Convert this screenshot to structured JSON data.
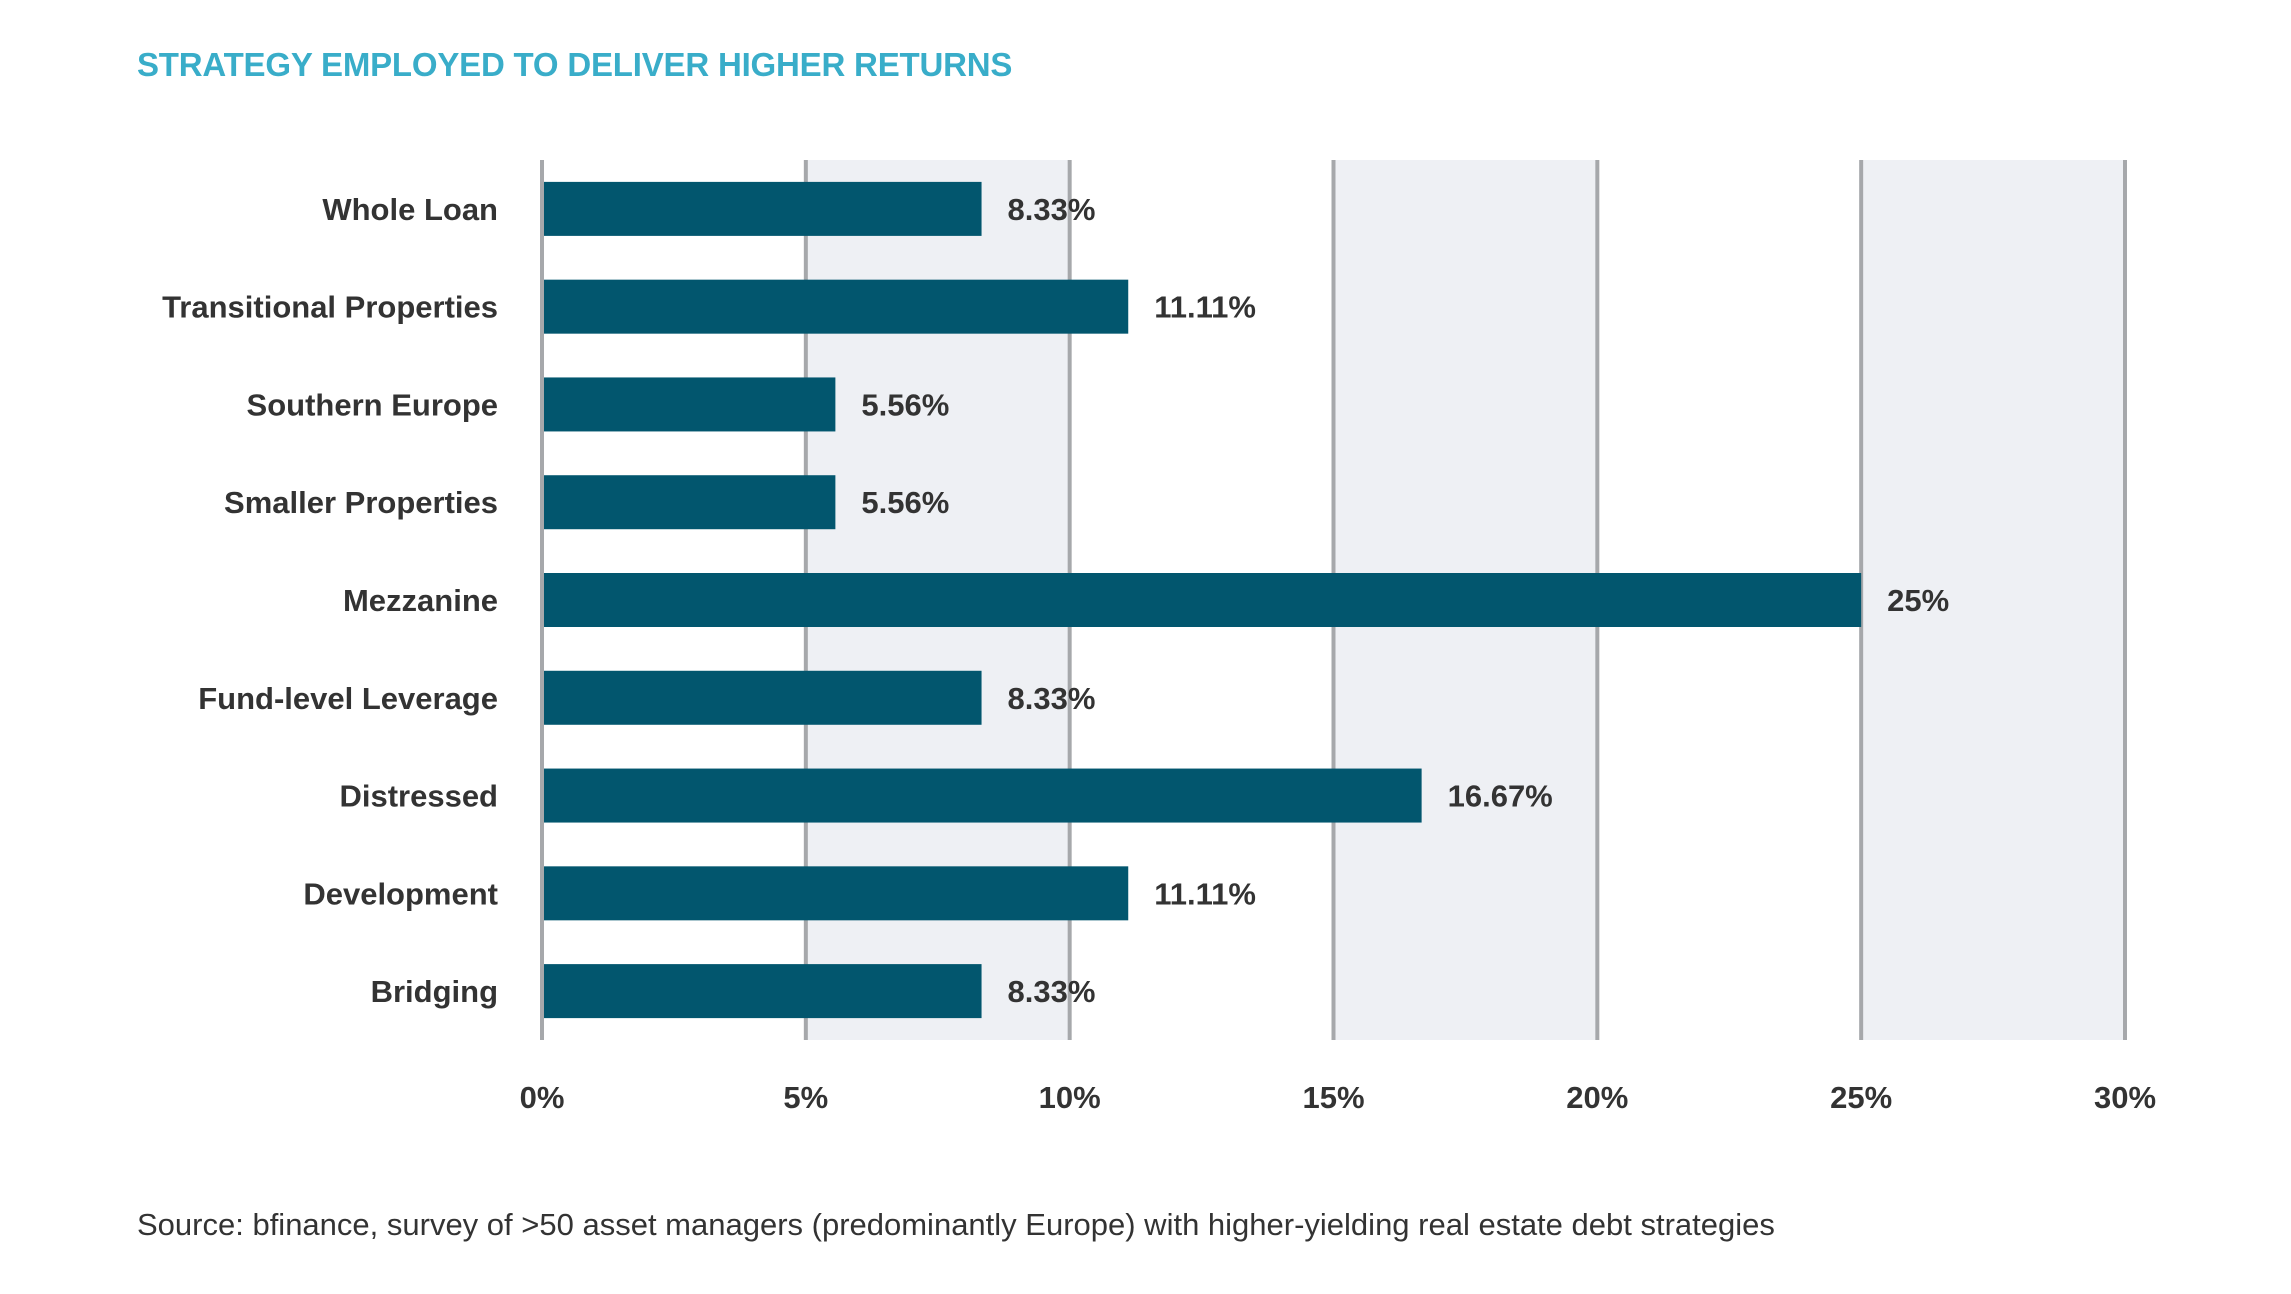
{
  "title": "STRATEGY EMPLOYED TO DELIVER HIGHER RETURNS",
  "source": "Source: bfinance, survey of >50 asset managers (predominantly Europe) with higher-yielding real estate debt strategies",
  "colors": {
    "title": "#39adc9",
    "bar": "#02566e",
    "band": "#eef0f4",
    "grid": "#a6a8ab",
    "text": "#333333"
  },
  "chart_data": {
    "type": "bar",
    "orientation": "horizontal",
    "title": "STRATEGY EMPLOYED TO DELIVER HIGHER RETURNS",
    "categories": [
      "Whole Loan",
      "Transitional Properties",
      "Southern Europe",
      "Smaller Properties",
      "Mezzanine",
      "Fund-level Leverage",
      "Distressed",
      "Development",
      "Bridging"
    ],
    "values": [
      8.33,
      11.11,
      5.56,
      5.56,
      25,
      8.33,
      16.67,
      11.11,
      8.33
    ],
    "value_labels": [
      "8.33%",
      "11.11%",
      "5.56%",
      "5.56%",
      "25%",
      "8.33%",
      "16.67%",
      "11.11%",
      "8.33%"
    ],
    "xlim": [
      0,
      30
    ],
    "xticks": [
      0,
      5,
      10,
      15,
      20,
      25,
      30
    ],
    "xtick_labels": [
      "0%",
      "5%",
      "10%",
      "15%",
      "20%",
      "25%",
      "30%"
    ],
    "xlabel": "",
    "ylabel": "",
    "grid": true,
    "alternating_bands": true
  }
}
